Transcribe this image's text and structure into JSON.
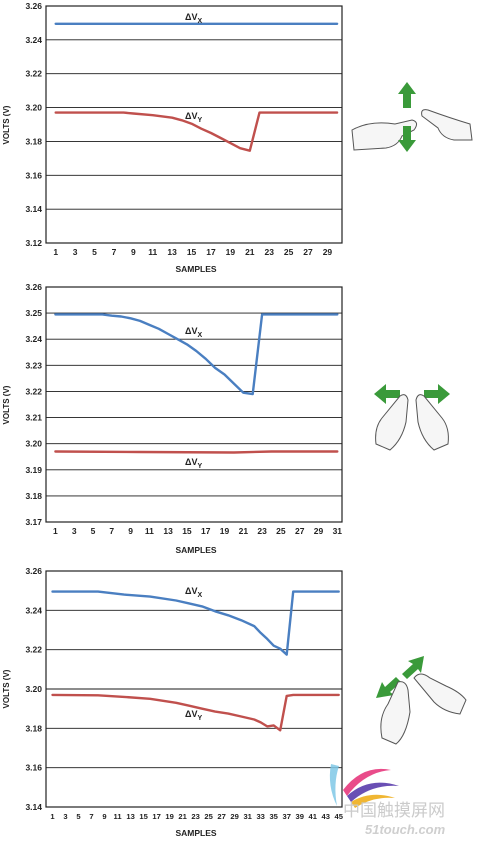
{
  "chart_data": [
    {
      "type": "line",
      "ylabel": "VOLTS (V)",
      "xlabel": "SAMPLES",
      "ylim": [
        3.12,
        3.26
      ],
      "yticks": [
        "3.12",
        "3.14",
        "3.16",
        "3.18",
        "3.20",
        "3.22",
        "3.24",
        "3.26"
      ],
      "xlim": [
        0,
        30.5
      ],
      "xticks": [
        "1",
        "3",
        "5",
        "7",
        "9",
        "11",
        "13",
        "15",
        "17",
        "19",
        "21",
        "23",
        "25",
        "27",
        "29"
      ],
      "grid": true,
      "gesture": "vertical-pinch",
      "series": [
        {
          "name": "ΔVX",
          "color": "#4a7fc1",
          "x": [
            1,
            30
          ],
          "y": [
            3.2495,
            3.2495
          ]
        },
        {
          "name": "ΔVY",
          "color": "#c0504d",
          "x": [
            1,
            8,
            9,
            11,
            13,
            14,
            15,
            16,
            17,
            18,
            19,
            20,
            21,
            22,
            23,
            30
          ],
          "y": [
            3.197,
            3.197,
            3.1965,
            3.1955,
            3.194,
            3.1925,
            3.1905,
            3.1875,
            3.185,
            3.182,
            3.179,
            3.176,
            3.1745,
            3.197,
            3.197,
            3.197
          ]
        }
      ]
    },
    {
      "type": "line",
      "ylabel": "VOLTS (V)",
      "xlabel": "SAMPLES",
      "ylim": [
        3.17,
        3.26
      ],
      "yticks": [
        "3.17",
        "3.18",
        "3.19",
        "3.20",
        "3.21",
        "3.22",
        "3.23",
        "3.24",
        "3.25",
        "3.26"
      ],
      "xlim": [
        0,
        31.5
      ],
      "xticks": [
        "1",
        "3",
        "5",
        "7",
        "9",
        "11",
        "13",
        "15",
        "17",
        "19",
        "21",
        "23",
        "25",
        "27",
        "29",
        "31"
      ],
      "grid": true,
      "gesture": "horizontal-spread",
      "series": [
        {
          "name": "ΔVX",
          "color": "#4a7fc1",
          "x": [
            1,
            6,
            7,
            8,
            9,
            10,
            11,
            12,
            13,
            14,
            15,
            16,
            17,
            18,
            19,
            20,
            21,
            22,
            23,
            24,
            25,
            31
          ],
          "y": [
            3.2495,
            3.2495,
            3.249,
            3.2487,
            3.248,
            3.247,
            3.2455,
            3.244,
            3.242,
            3.24,
            3.238,
            3.2355,
            3.2325,
            3.229,
            3.2265,
            3.223,
            3.2195,
            3.219,
            3.2495,
            3.2495,
            3.2495,
            3.2495
          ]
        },
        {
          "name": "ΔVY",
          "color": "#c0504d",
          "x": [
            1,
            10,
            20,
            24,
            31
          ],
          "y": [
            3.197,
            3.1968,
            3.1966,
            3.197,
            3.197
          ]
        }
      ]
    },
    {
      "type": "line",
      "ylabel": "VOLTS (V)",
      "xlabel": "SAMPLES",
      "ylim": [
        3.14,
        3.26
      ],
      "yticks": [
        "3.14",
        "3.16",
        "3.18",
        "3.20",
        "3.22",
        "3.24",
        "3.26"
      ],
      "xlim": [
        0,
        45.5
      ],
      "xticks": [
        "1",
        "3",
        "5",
        "7",
        "9",
        "11",
        "13",
        "15",
        "17",
        "19",
        "21",
        "23",
        "25",
        "27",
        "29",
        "31",
        "33",
        "35",
        "37",
        "39",
        "41",
        "43",
        "45"
      ],
      "grid": true,
      "gesture": "diagonal-spread",
      "series": [
        {
          "name": "ΔVX",
          "color": "#4a7fc1",
          "x": [
            1,
            8,
            12,
            16,
            20,
            22,
            24,
            26,
            28,
            30,
            32,
            33,
            34,
            35,
            36,
            37,
            38,
            39,
            45
          ],
          "y": [
            3.2495,
            3.2495,
            3.248,
            3.247,
            3.245,
            3.2435,
            3.242,
            3.2395,
            3.2375,
            3.235,
            3.232,
            3.2285,
            3.2255,
            3.222,
            3.2205,
            3.2175,
            3.2495,
            3.2495,
            3.2495
          ]
        },
        {
          "name": "ΔVY",
          "color": "#c0504d",
          "x": [
            1,
            8,
            12,
            16,
            20,
            22,
            24,
            26,
            28,
            30,
            32,
            33,
            34,
            35,
            36,
            37,
            38,
            39,
            45
          ],
          "y": [
            3.197,
            3.1968,
            3.196,
            3.195,
            3.193,
            3.1915,
            3.19,
            3.1885,
            3.1875,
            3.186,
            3.1845,
            3.183,
            3.181,
            3.1815,
            3.179,
            3.1965,
            3.197,
            3.197,
            3.197
          ]
        }
      ]
    }
  ],
  "series_labels": {
    "x_main": "ΔV",
    "x_sub": "X",
    "y_main": "ΔV",
    "y_sub": "Y"
  },
  "watermark": {
    "brand": "中国触摸屏网",
    "url": "51touch.com"
  }
}
